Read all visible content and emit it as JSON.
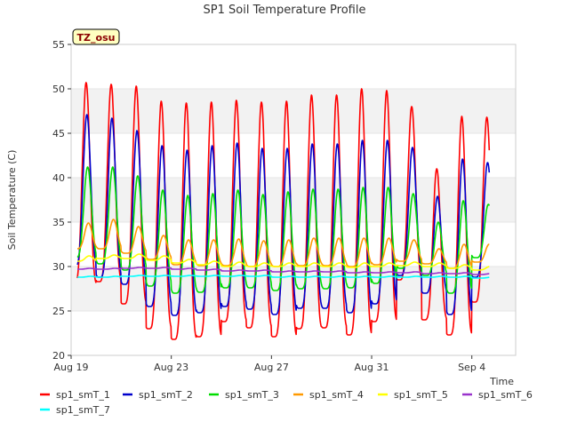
{
  "chart_data": {
    "type": "line",
    "title": "SP1 Soil Temperature Profile",
    "xlabel": "Time",
    "ylabel": "Soil Temperature (C)",
    "ylim": [
      20,
      55
    ],
    "yticks": [
      20,
      25,
      30,
      35,
      40,
      45,
      50,
      55
    ],
    "xlim": [
      "2023-08-19",
      "2023-09-05T18:00"
    ],
    "xticks": [
      {
        "date": "2023-08-19",
        "label": "Aug 19"
      },
      {
        "date": "2023-08-23",
        "label": "Aug 23"
      },
      {
        "date": "2023-08-27",
        "label": "Aug 27"
      },
      {
        "date": "2023-08-31",
        "label": "Aug 31"
      },
      {
        "date": "2023-09-04",
        "label": "Sep 4"
      }
    ],
    "grid": "horizontal bands",
    "site_label": "TZ_osu",
    "legend_position": "bottom",
    "series": [
      {
        "name": "sp1_smT_1",
        "color": "#ff0000",
        "daily_max": [
          50.7,
          50.5,
          50.3,
          48.6,
          48.4,
          48.5,
          48.7,
          48.5,
          48.6,
          49.3,
          49.3,
          50.0,
          49.8,
          48.0,
          41.0,
          46.9,
          46.8
        ],
        "daily_min": [
          28.0,
          28.3,
          25.8,
          23.0,
          21.8,
          22.1,
          23.8,
          23.1,
          22.1,
          23.0,
          23.1,
          22.3,
          23.8,
          28.5,
          24.0,
          22.3,
          26.0
        ]
      },
      {
        "name": "sp1_smT_2",
        "color": "#0000cc",
        "daily_max": [
          47.1,
          46.7,
          45.3,
          43.6,
          43.1,
          43.6,
          43.9,
          43.3,
          43.3,
          43.8,
          43.8,
          44.2,
          44.2,
          43.4,
          37.9,
          42.1,
          41.7
        ],
        "daily_min": [
          30.0,
          28.8,
          28.0,
          25.5,
          24.5,
          24.8,
          25.5,
          25.2,
          24.6,
          25.3,
          25.3,
          24.8,
          25.8,
          29.0,
          27.0,
          24.6,
          28.8
        ]
      },
      {
        "name": "sp1_smT_3",
        "color": "#00dd00",
        "daily_max": [
          41.2,
          41.2,
          40.2,
          38.6,
          38.0,
          38.2,
          38.6,
          38.1,
          38.4,
          38.7,
          38.7,
          38.9,
          38.9,
          38.2,
          35.0,
          37.4,
          37.0
        ],
        "daily_min": [
          31.0,
          30.3,
          29.6,
          27.8,
          27.0,
          27.1,
          27.6,
          27.6,
          27.3,
          27.5,
          27.5,
          27.6,
          28.1,
          29.8,
          29.0,
          27.0,
          31.0
        ]
      },
      {
        "name": "sp1_smT_4",
        "color": "#ff9900",
        "daily_max": [
          34.9,
          35.3,
          34.5,
          33.5,
          33.0,
          33.0,
          33.1,
          32.9,
          33.0,
          33.2,
          33.2,
          33.2,
          33.2,
          33.0,
          32.0,
          32.5,
          32.5
        ],
        "daily_min": [
          32.0,
          32.0,
          31.5,
          30.8,
          30.2,
          30.1,
          30.1,
          30.0,
          30.0,
          30.1,
          30.1,
          30.0,
          30.2,
          30.6,
          30.3,
          29.8,
          30.5
        ]
      },
      {
        "name": "sp1_smT_5",
        "color": "#ffff00",
        "daily_max": [
          31.2,
          31.3,
          31.4,
          31.2,
          30.8,
          30.6,
          30.5,
          30.4,
          30.4,
          30.4,
          30.4,
          30.4,
          30.4,
          30.5,
          30.4,
          30.2,
          30.0
        ],
        "daily_min": [
          30.6,
          30.9,
          30.9,
          30.7,
          30.4,
          30.2,
          30.0,
          30.0,
          30.0,
          30.0,
          30.0,
          29.9,
          30.0,
          30.1,
          30.0,
          29.8,
          29.6
        ]
      },
      {
        "name": "sp1_smT_6",
        "color": "#9933cc",
        "daily_max": [
          29.8,
          29.8,
          29.9,
          29.9,
          29.8,
          29.7,
          29.6,
          29.6,
          29.5,
          29.5,
          29.5,
          29.4,
          29.4,
          29.4,
          29.3,
          29.3,
          29.2
        ],
        "daily_min": [
          29.7,
          29.7,
          29.8,
          29.8,
          29.7,
          29.6,
          29.5,
          29.5,
          29.4,
          29.4,
          29.4,
          29.3,
          29.3,
          29.3,
          29.2,
          29.2,
          29.1
        ]
      },
      {
        "name": "sp1_smT_7",
        "color": "#00ffff",
        "daily_max": [
          28.9,
          28.9,
          29.0,
          29.0,
          29.0,
          29.0,
          29.0,
          29.0,
          28.9,
          28.9,
          28.9,
          28.9,
          28.9,
          28.9,
          28.9,
          28.9,
          28.8
        ],
        "daily_min": [
          28.8,
          28.8,
          28.9,
          28.9,
          28.9,
          28.9,
          28.9,
          28.9,
          28.8,
          28.8,
          28.8,
          28.8,
          28.8,
          28.8,
          28.8,
          28.8,
          28.7
        ]
      }
    ]
  }
}
